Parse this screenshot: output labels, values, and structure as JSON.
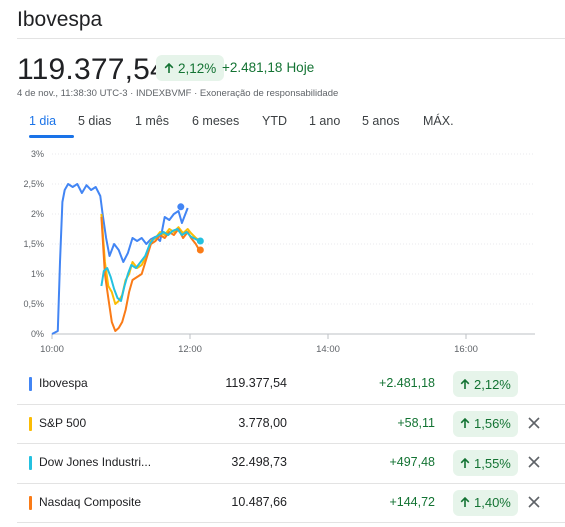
{
  "header": {
    "title": "Ibovespa"
  },
  "quote": {
    "price": "119.377,54",
    "pct_change": "2,12%",
    "abs_change": "+2.481,18",
    "change_suffix": "Hoje",
    "timestamp": "4 de nov., 11:38:30 UTC-3",
    "exchange": "INDEXBVMF",
    "disclaimer": "Exoneração de responsabilidade",
    "separator": "·"
  },
  "tabs": [
    {
      "label": "1 dia",
      "active": true
    },
    {
      "label": "5 dias"
    },
    {
      "label": "1 mês"
    },
    {
      "label": "6 meses"
    },
    {
      "label": "YTD"
    },
    {
      "label": "1 ano"
    },
    {
      "label": "5 anos"
    },
    {
      "label": "MÁX."
    }
  ],
  "colors": {
    "ibovespa": "#4285f4",
    "sp500": "#fbbc04",
    "dowjones": "#24c1e0",
    "nasdaq": "#fa7b17",
    "positive": "#137333",
    "badge_bg": "#e6f4ea"
  },
  "chart_data": {
    "type": "line",
    "x_ticks": [
      "10:00",
      "12:00",
      "14:00",
      "16:00"
    ],
    "y_ticks": [
      "3%",
      "2,5%",
      "2%",
      "1,5%",
      "1%",
      "0,5%",
      "0%"
    ],
    "ylim": [
      0,
      3
    ],
    "x_unit": "minutes since 10:00",
    "xlim": [
      0,
      420
    ],
    "series": [
      {
        "name": "Ibovespa",
        "color": "#4285f4",
        "points": [
          [
            0,
            0
          ],
          [
            5,
            0.05
          ],
          [
            7,
            1.2
          ],
          [
            9,
            2.2
          ],
          [
            11,
            2.4
          ],
          [
            14,
            2.5
          ],
          [
            18,
            2.45
          ],
          [
            22,
            2.5
          ],
          [
            26,
            2.35
          ],
          [
            30,
            2.48
          ],
          [
            34,
            2.4
          ],
          [
            38,
            2.45
          ],
          [
            42,
            2.3
          ],
          [
            44,
            2.0
          ],
          [
            47,
            1.6
          ],
          [
            50,
            1.3
          ],
          [
            54,
            1.5
          ],
          [
            58,
            1.4
          ],
          [
            62,
            1.2
          ],
          [
            66,
            1.35
          ],
          [
            70,
            1.6
          ],
          [
            74,
            1.55
          ],
          [
            78,
            1.6
          ],
          [
            82,
            1.5
          ],
          [
            86,
            1.58
          ],
          [
            90,
            1.62
          ],
          [
            94,
            1.55
          ],
          [
            98,
            1.95
          ],
          [
            102,
            1.9
          ],
          [
            106,
            2.0
          ],
          [
            110,
            2.05
          ],
          [
            113,
            1.85
          ],
          [
            118,
            2.1
          ]
        ]
      },
      {
        "name": "S&P 500",
        "color": "#fbbc04",
        "points": [
          [
            43,
            2.0
          ],
          [
            46,
            1.2
          ],
          [
            49,
            0.8
          ],
          [
            52,
            0.7
          ],
          [
            55,
            0.5
          ],
          [
            58,
            0.55
          ],
          [
            61,
            0.65
          ],
          [
            64,
            0.9
          ],
          [
            67,
            1.0
          ],
          [
            70,
            1.2
          ],
          [
            74,
            1.1
          ],
          [
            78,
            1.15
          ],
          [
            82,
            1.3
          ],
          [
            86,
            1.55
          ],
          [
            90,
            1.6
          ],
          [
            94,
            1.7
          ],
          [
            98,
            1.65
          ],
          [
            102,
            1.75
          ],
          [
            106,
            1.7
          ],
          [
            110,
            1.78
          ],
          [
            114,
            1.68
          ],
          [
            118,
            1.75
          ],
          [
            121,
            1.68
          ],
          [
            125,
            1.6
          ],
          [
            128,
            1.56
          ]
        ]
      },
      {
        "name": "Dow Jones Industri...",
        "color": "#24c1e0",
        "points": [
          [
            43,
            0.8
          ],
          [
            45,
            1.05
          ],
          [
            48,
            1.1
          ],
          [
            51,
            0.95
          ],
          [
            54,
            0.75
          ],
          [
            57,
            0.6
          ],
          [
            60,
            0.55
          ],
          [
            63,
            0.8
          ],
          [
            66,
            1.0
          ],
          [
            69,
            1.15
          ],
          [
            73,
            1.1
          ],
          [
            77,
            1.2
          ],
          [
            81,
            1.3
          ],
          [
            85,
            1.5
          ],
          [
            89,
            1.6
          ],
          [
            93,
            1.65
          ],
          [
            97,
            1.7
          ],
          [
            101,
            1.65
          ],
          [
            105,
            1.72
          ],
          [
            109,
            1.75
          ],
          [
            113,
            1.65
          ],
          [
            117,
            1.7
          ],
          [
            121,
            1.62
          ],
          [
            125,
            1.58
          ],
          [
            128,
            1.55
          ]
        ]
      },
      {
        "name": "Nasdaq Composite",
        "color": "#fa7b17",
        "points": [
          [
            43,
            1.95
          ],
          [
            46,
            1.0
          ],
          [
            49,
            0.6
          ],
          [
            52,
            0.2
          ],
          [
            55,
            0.05
          ],
          [
            58,
            0.1
          ],
          [
            61,
            0.2
          ],
          [
            64,
            0.4
          ],
          [
            67,
            0.7
          ],
          [
            70,
            0.9
          ],
          [
            74,
            0.95
          ],
          [
            78,
            1.0
          ],
          [
            82,
            1.25
          ],
          [
            86,
            1.5
          ],
          [
            90,
            1.55
          ],
          [
            94,
            1.65
          ],
          [
            98,
            1.6
          ],
          [
            102,
            1.7
          ],
          [
            106,
            1.65
          ],
          [
            110,
            1.75
          ],
          [
            114,
            1.6
          ],
          [
            118,
            1.7
          ],
          [
            121,
            1.6
          ],
          [
            125,
            1.5
          ],
          [
            128,
            1.4
          ]
        ]
      }
    ],
    "end_markers": [
      {
        "series": "Ibovespa",
        "x": 112,
        "y": 2.12
      },
      {
        "series": "Dow Jones Industri...",
        "x": 129,
        "y": 1.55
      },
      {
        "series": "Nasdaq Composite",
        "x": 129,
        "y": 1.4
      }
    ]
  },
  "rows": [
    {
      "name": "Ibovespa",
      "value": "119.377,54",
      "change": "+2.481,18",
      "pct": "2,12%",
      "color": "#4285f4",
      "removable": false
    },
    {
      "name": "S&P 500",
      "value": "3.778,00",
      "change": "+58,11",
      "pct": "1,56%",
      "color": "#fbbc04",
      "removable": true
    },
    {
      "name": "Dow Jones Industri...",
      "value": "32.498,73",
      "change": "+497,48",
      "pct": "1,55%",
      "color": "#24c1e0",
      "removable": true
    },
    {
      "name": "Nasdaq Composite",
      "value": "10.487,66",
      "change": "+144,72",
      "pct": "1,40%",
      "color": "#fa7b17",
      "removable": true
    }
  ]
}
